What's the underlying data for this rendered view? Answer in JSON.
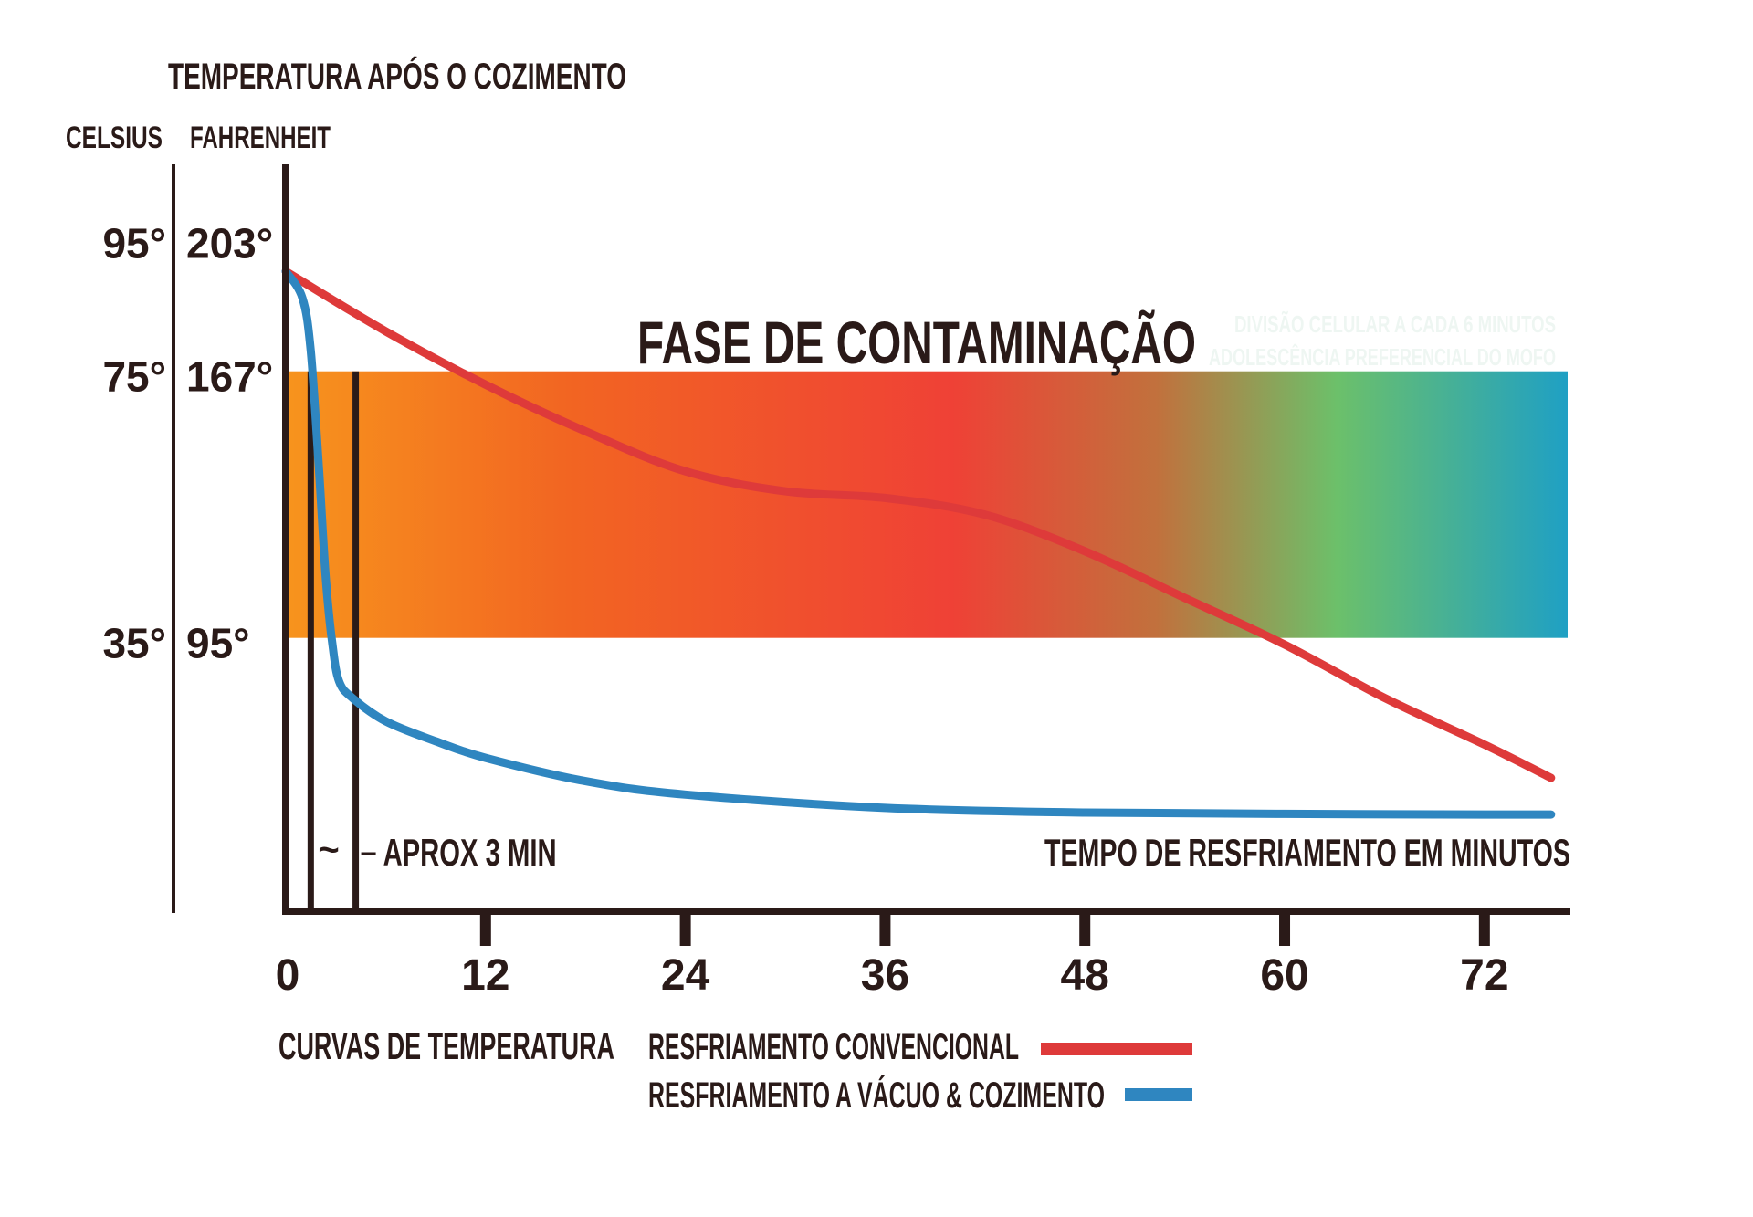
{
  "chart_data": {
    "type": "line",
    "title": "TEMPERATURA APÓS O COZIMENTO",
    "axis_units": {
      "left": "CELSIUS",
      "right": "FAHRENHEIT"
    },
    "y_ticks": [
      {
        "celsius": "95°",
        "fahrenheit": "203°",
        "value_c": 95
      },
      {
        "celsius": "75°",
        "fahrenheit": "167°",
        "value_c": 75
      },
      {
        "celsius": "35°",
        "fahrenheit": "95°",
        "value_c": 35
      }
    ],
    "xlabel": "TEMPO DE RESFRIAMENTO EM MINUTOS",
    "x_ticks": [
      "0",
      "12",
      "24",
      "36",
      "48",
      "60",
      "72"
    ],
    "x_tick_values": [
      0,
      12,
      24,
      36,
      48,
      60,
      72
    ],
    "xlim": [
      0,
      77
    ],
    "ylim": [
      -6,
      104
    ],
    "band": {
      "label": "FASE DE CONTAMINAÇÃO",
      "from_c": 35,
      "to_c": 75,
      "notes": [
        "DIVISÃO CELULAR A CADA 6 MINUTOS",
        "ADOLESCÊNCIA PREFERENCIAL DO MOFO"
      ],
      "gradient": [
        "#f7941d",
        "#f26522",
        "#ef4136",
        "#c1713d",
        "#6cc06a",
        "#1fa0c4"
      ]
    },
    "annotation": {
      "text": "APROX 3 MIN",
      "from_min": 1.5,
      "to_min": 4.2,
      "glyph": "~"
    },
    "legend_title": "CURVAS DE TEMPERATURA",
    "series": [
      {
        "name": "RESFRIAMENTO CONVENCIONAL",
        "color": "#de3a3a",
        "x": [
          0,
          6,
          12,
          18,
          24,
          30,
          36,
          42,
          48,
          54,
          60,
          66,
          72,
          76
        ],
        "values": [
          90,
          81,
          73,
          66,
          60,
          57,
          56,
          53.5,
          48,
          41,
          34,
          26,
          19,
          14
        ]
      },
      {
        "name": "RESFRIAMENTO A VÁCUO & COZIMENTO",
        "color": "#2f86c0",
        "x": [
          0,
          1,
          1.5,
          2,
          2.4,
          2.8,
          3.2,
          4,
          6,
          9,
          12,
          18,
          24,
          36,
          48,
          60,
          72,
          76
        ],
        "values": [
          90,
          86,
          78,
          60,
          44,
          34,
          28.5,
          26,
          22.5,
          19.5,
          17,
          13.5,
          11.5,
          9.5,
          8.8,
          8.6,
          8.5,
          8.5
        ]
      }
    ]
  }
}
